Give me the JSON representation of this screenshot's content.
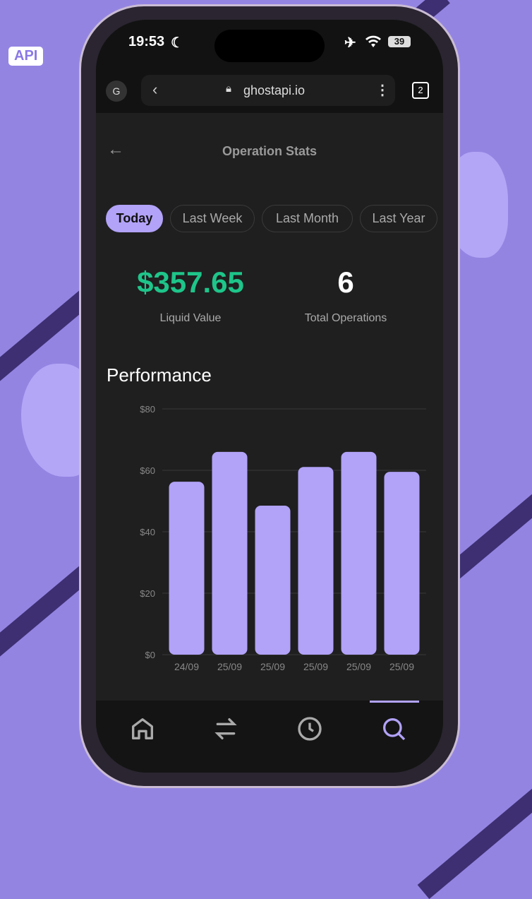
{
  "badge": "API",
  "status": {
    "time": "19:53",
    "battery": "39"
  },
  "browser": {
    "profile": "G",
    "url": "ghostapi.io",
    "tab_count": "2"
  },
  "header": {
    "title": "Operation Stats"
  },
  "filters": [
    {
      "label": "Today",
      "active": true
    },
    {
      "label": "Last Week"
    },
    {
      "label": "Last Month"
    },
    {
      "label": "Last Year"
    }
  ],
  "stats": {
    "liquid_value": "$357.65",
    "liquid_label": "Liquid Value",
    "total_ops": "6",
    "total_label": "Total Operations"
  },
  "colors": {
    "accent": "#b2a2f8",
    "positive": "#1ec58a",
    "background": "#1f1f1f"
  },
  "performance_title": "Performance",
  "chart_data": {
    "type": "bar",
    "categories": [
      "24/09",
      "25/09",
      "25/09",
      "25/09",
      "25/09",
      "25/09"
    ],
    "values": [
      56.3,
      66,
      48.5,
      61.1,
      66,
      59.5
    ],
    "ylim": [
      0,
      80
    ],
    "yticks": [
      "$0",
      "$20",
      "$40",
      "$60",
      "$80"
    ],
    "grid": true
  },
  "nav": [
    {
      "icon": "home-icon"
    },
    {
      "icon": "swap-icon"
    },
    {
      "icon": "clock-icon"
    },
    {
      "icon": "search-icon",
      "active": true
    }
  ]
}
